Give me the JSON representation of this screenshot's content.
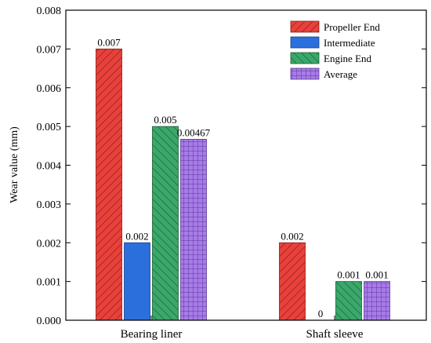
{
  "chart_data": {
    "type": "bar",
    "categories": [
      "Bearing liner",
      "Shaft sleeve"
    ],
    "series": [
      {
        "name": "Propeller End",
        "values": [
          0.007,
          0.002
        ],
        "labels": [
          "0.007",
          "0.002"
        ],
        "color": "#e8413b",
        "pattern": "diagonal-hatch"
      },
      {
        "name": "Intermediate",
        "values": [
          0.002,
          0
        ],
        "labels": [
          "0.002",
          "0"
        ],
        "color": "#2a6fdc",
        "pattern": "solid"
      },
      {
        "name": "Engine End",
        "values": [
          0.005,
          0.001
        ],
        "labels": [
          "0.005",
          "0.001"
        ],
        "color": "#3aa86a",
        "pattern": "diagonal-hatch"
      },
      {
        "name": "Average",
        "values": [
          0.00467,
          0.001
        ],
        "labels": [
          "0.00467",
          "0.001"
        ],
        "color": "#a77be8",
        "pattern": "grid"
      }
    ],
    "title": "",
    "xlabel": "",
    "ylabel": "Wear value (mm)",
    "ylim": [
      0,
      0.008
    ],
    "yticks": [
      "0.000",
      "0.001",
      "0.002",
      "0.003",
      "0.004",
      "0.005",
      "0.006",
      "0.007",
      "0.008"
    ],
    "legend_position": "top-right",
    "grid": false
  }
}
